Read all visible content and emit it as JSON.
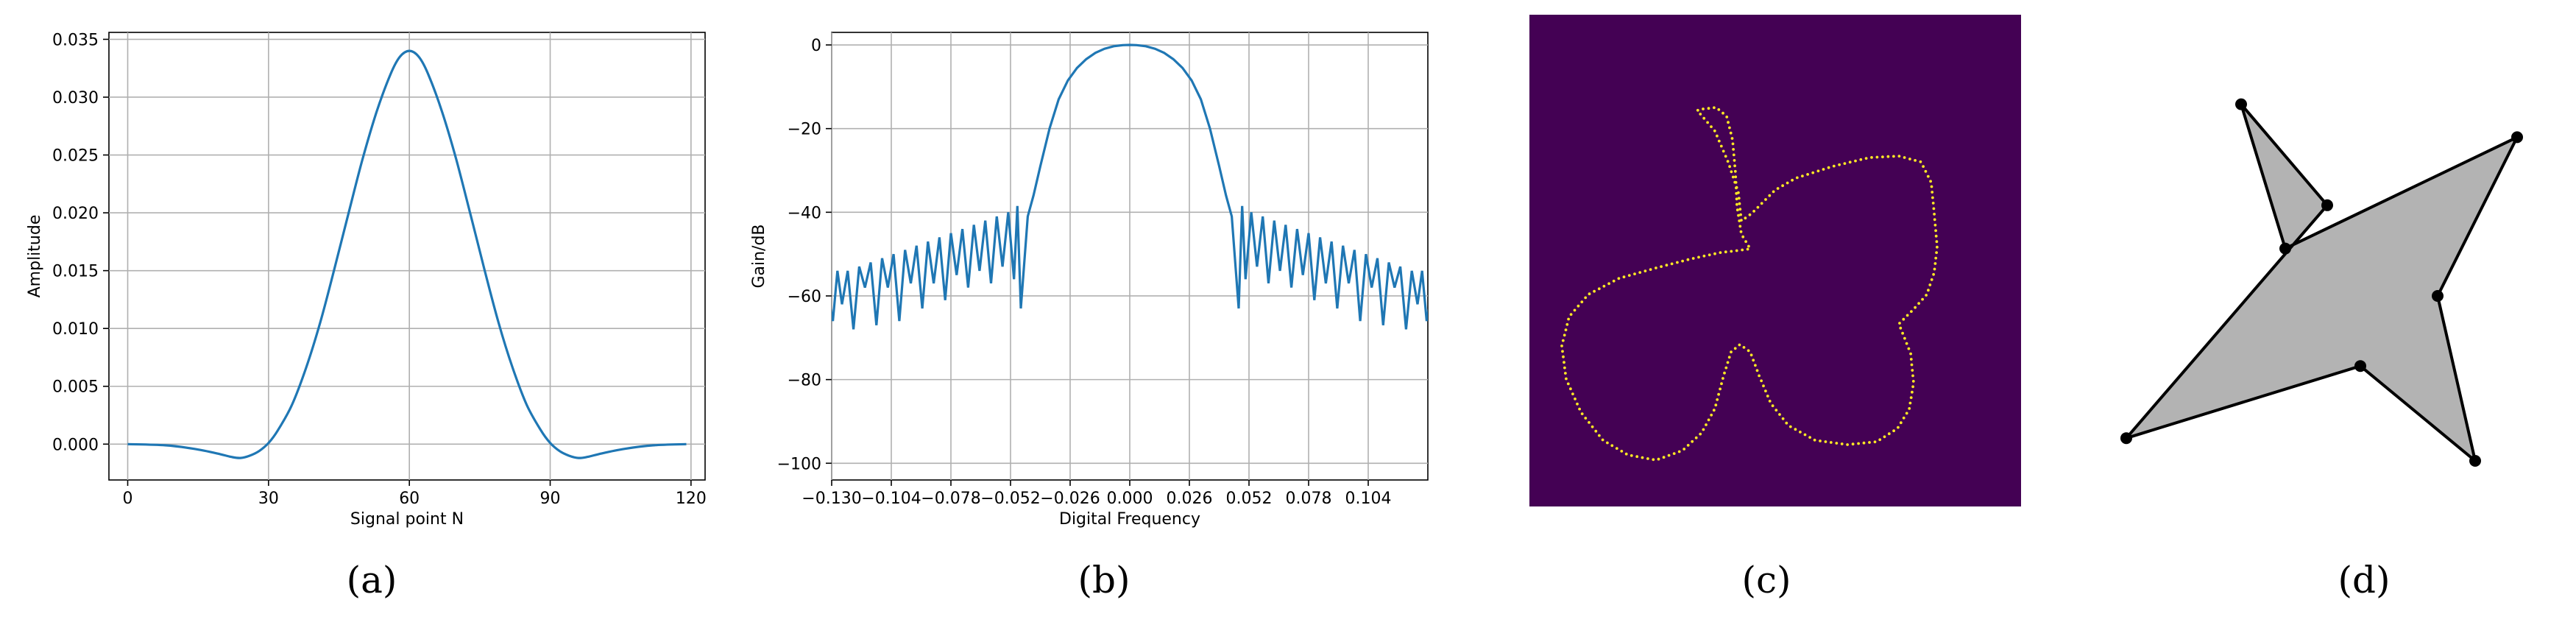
{
  "chart_data": [
    {
      "type": "line",
      "caption": "(a)",
      "xlabel": "Signal point N",
      "ylabel": "Amplitude",
      "xlim": [
        -4,
        123
      ],
      "ylim": [
        -0.0031,
        0.0356
      ],
      "xticks": [
        0,
        30,
        60,
        90,
        120
      ],
      "yticks": [
        0.0,
        0.005,
        0.01,
        0.015,
        0.02,
        0.025,
        0.03,
        0.035
      ],
      "ytick_labels": [
        "0.000",
        "0.005",
        "0.010",
        "0.015",
        "0.020",
        "0.025",
        "0.030",
        "0.035"
      ],
      "grid": true,
      "color": "#1f77b4",
      "x": [
        0,
        8,
        14,
        19,
        22,
        24,
        26,
        28,
        30,
        32,
        35,
        38,
        41,
        44,
        47,
        50,
        53,
        56,
        58,
        60,
        62,
        64,
        67,
        70,
        73,
        76,
        79,
        82,
        85,
        88,
        90,
        92,
        94,
        96,
        98,
        101,
        106,
        112,
        119
      ],
      "y": [
        0.0,
        -0.0001,
        -0.0004,
        -0.0008,
        -0.0011,
        -0.0012,
        -0.001,
        -0.0006,
        0.0001,
        0.0012,
        0.0034,
        0.0066,
        0.0105,
        0.0151,
        0.0199,
        0.0246,
        0.0287,
        0.032,
        0.0335,
        0.034,
        0.0335,
        0.032,
        0.0287,
        0.0246,
        0.0199,
        0.0151,
        0.0105,
        0.0066,
        0.0034,
        0.0012,
        0.0001,
        -0.0006,
        -0.001,
        -0.0012,
        -0.0011,
        -0.0008,
        -0.0004,
        -0.0001,
        0.0
      ]
    },
    {
      "type": "line",
      "caption": "(b)",
      "xlabel": "Digital Frequency",
      "ylabel": "Gain/dB",
      "xlim": [
        -0.13,
        0.13
      ],
      "ylim": [
        -104,
        3
      ],
      "xticks": [
        -0.13,
        -0.104,
        -0.078,
        -0.052,
        -0.026,
        0.0,
        0.026,
        0.052,
        0.078,
        0.104
      ],
      "xtick_labels": [
        "−0.130",
        "−0.104",
        "−0.078",
        "−0.052",
        "−0.026",
        "0.000",
        "0.026",
        "0.052",
        "0.078",
        "0.104"
      ],
      "yticks": [
        0,
        -20,
        -40,
        -60,
        -80,
        -100
      ],
      "ytick_labels": [
        "0",
        "−20",
        "−40",
        "−60",
        "−80",
        "−100"
      ],
      "grid": true,
      "color": "#1f77b4",
      "passband": {
        "x": [
          -0.0445,
          -0.042,
          -0.039,
          -0.035,
          -0.031,
          -0.027,
          -0.023,
          -0.019,
          -0.015,
          -0.011,
          -0.007,
          -0.003,
          0.0,
          0.003,
          0.007,
          0.011,
          0.015,
          0.019,
          0.023,
          0.027,
          0.031,
          0.035,
          0.039,
          0.042,
          0.0445
        ],
        "y": [
          -41,
          -36,
          -29,
          -20,
          -13,
          -8.5,
          -5.5,
          -3.4,
          -1.9,
          -0.9,
          -0.3,
          -0.05,
          0.0,
          -0.05,
          -0.3,
          -0.9,
          -1.9,
          -3.4,
          -5.5,
          -8.5,
          -13,
          -20,
          -29,
          -36,
          -41
        ]
      },
      "sidelobes": {
        "nulls": [
          -0.1295,
          -0.1255,
          -0.1205,
          -0.1155,
          -0.1105,
          -0.1055,
          -0.1005,
          -0.0955,
          -0.0905,
          -0.0855,
          -0.0805,
          -0.0755,
          -0.0705,
          -0.0655,
          -0.0605,
          -0.0555,
          -0.0505,
          -0.0475
        ],
        "null_depths": [
          -66,
          -62,
          -68,
          -58,
          -67,
          -58,
          -66,
          -57,
          -63,
          -57,
          -61,
          -55,
          -58,
          -54,
          -57,
          -53,
          -56,
          -63
        ],
        "peaks": [
          -0.1275,
          -0.123,
          -0.118,
          -0.113,
          -0.108,
          -0.103,
          -0.098,
          -0.093,
          -0.088,
          -0.083,
          -0.078,
          -0.073,
          -0.068,
          -0.063,
          -0.058,
          -0.053,
          -0.049
        ],
        "peak_levels": [
          -54,
          -54,
          -53,
          -52,
          -51,
          -50,
          -49,
          -48,
          -47,
          -46,
          -45,
          -44,
          -43,
          -42,
          -41,
          -40,
          -38.5
        ]
      }
    },
    {
      "type": "image",
      "caption": "(c)",
      "background": "#440154",
      "point_color": "#fde725"
    },
    {
      "type": "polygon",
      "caption": "(d)",
      "fill": "#b3b3b3",
      "stroke": "#000000",
      "vertices": [
        [
          -0.45,
          0.78
        ],
        [
          -0.25,
          0.08
        ],
        [
          0.8,
          0.62
        ],
        [
          0.44,
          -0.15
        ],
        [
          0.61,
          -0.95
        ],
        [
          0.09,
          -0.49
        ],
        [
          -0.97,
          -0.84
        ],
        [
          -0.06,
          0.29
        ]
      ],
      "xlim": [
        -1,
        1
      ],
      "ylim": [
        -1,
        1
      ]
    }
  ]
}
